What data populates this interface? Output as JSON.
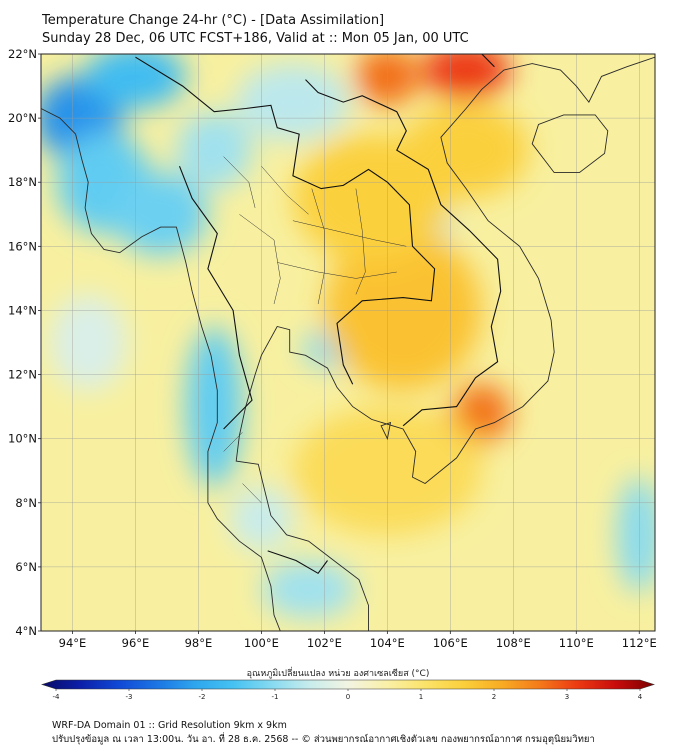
{
  "title": {
    "line1": "Temperature Change 24-hr (°C) - [Data Assimilation]",
    "line2": "Sunday 28 Dec, 06 UTC FCST+186, Valid at :: Mon 05 Jan, 00 UTC"
  },
  "map": {
    "lon_range": [
      93,
      112.5
    ],
    "lat_range": [
      4,
      22
    ],
    "lat_ticks": [
      {
        "value": 22,
        "label": "22°N"
      },
      {
        "value": 20,
        "label": "20°N"
      },
      {
        "value": 18,
        "label": "18°N"
      },
      {
        "value": 16,
        "label": "16°N"
      },
      {
        "value": 14,
        "label": "14°N"
      },
      {
        "value": 12,
        "label": "12°N"
      },
      {
        "value": 10,
        "label": "10°N"
      },
      {
        "value": 8,
        "label": "8°N"
      },
      {
        "value": 6,
        "label": "6°N"
      },
      {
        "value": 4,
        "label": "4°N"
      }
    ],
    "lon_ticks": [
      {
        "value": 94,
        "label": "94°E"
      },
      {
        "value": 96,
        "label": "96°E"
      },
      {
        "value": 98,
        "label": "98°E"
      },
      {
        "value": 100,
        "label": "100°E"
      },
      {
        "value": 102,
        "label": "102°E"
      },
      {
        "value": 104,
        "label": "104°E"
      },
      {
        "value": 106,
        "label": "106°E"
      },
      {
        "value": 108,
        "label": "108°E"
      },
      {
        "value": 110,
        "label": "110°E"
      },
      {
        "value": 112,
        "label": "112°E"
      }
    ],
    "grid_lines": true,
    "background_color": "#f8f0a0",
    "field_blobs": [
      {
        "lon": 94.2,
        "lat": 20.0,
        "rlon": 1.4,
        "rlat": 1.3,
        "value": -2.2
      },
      {
        "lon": 96.0,
        "lat": 21.3,
        "rlon": 1.6,
        "rlat": 1.0,
        "value": -1.6
      },
      {
        "lon": 95.0,
        "lat": 18.0,
        "rlon": 1.5,
        "rlat": 1.6,
        "value": -1.3
      },
      {
        "lon": 96.8,
        "lat": 17.0,
        "rlon": 1.5,
        "rlat": 1.3,
        "value": -1.2
      },
      {
        "lon": 98.5,
        "lat": 19.0,
        "rlon": 1.2,
        "rlat": 1.2,
        "value": -0.8
      },
      {
        "lon": 101.0,
        "lat": 20.5,
        "rlon": 1.8,
        "rlat": 1.2,
        "value": -0.6
      },
      {
        "lon": 98.5,
        "lat": 11.0,
        "rlon": 0.9,
        "rlat": 2.5,
        "value": -1.3
      },
      {
        "lon": 102.3,
        "lat": 12.8,
        "rlon": 1.0,
        "rlat": 0.6,
        "value": -1.0
      },
      {
        "lon": 105.3,
        "lat": 16.8,
        "rlon": 0.8,
        "rlat": 0.6,
        "value": -0.8
      },
      {
        "lon": 101.5,
        "lat": 5.3,
        "rlon": 1.5,
        "rlat": 0.9,
        "value": -0.8
      },
      {
        "lon": 100.0,
        "lat": 7.5,
        "rlon": 1.0,
        "rlat": 1.0,
        "value": -0.5
      },
      {
        "lon": 112.0,
        "lat": 7.0,
        "rlon": 0.7,
        "rlat": 1.8,
        "value": -1.0
      },
      {
        "lon": 94.5,
        "lat": 13.0,
        "rlon": 1.2,
        "rlat": 1.5,
        "value": -0.3
      },
      {
        "lon": 104.0,
        "lat": 21.3,
        "rlon": 1.0,
        "rlat": 0.9,
        "value": 2.6
      },
      {
        "lon": 106.5,
        "lat": 21.5,
        "rlon": 1.4,
        "rlat": 0.9,
        "value": 3.0
      },
      {
        "lon": 107.0,
        "lat": 10.8,
        "rlon": 0.9,
        "rlat": 0.9,
        "value": 2.6
      },
      {
        "lon": 105.8,
        "lat": 9.8,
        "rlon": 1.2,
        "rlat": 1.0,
        "value": 2.0
      },
      {
        "lon": 104.5,
        "lat": 14.0,
        "rlon": 2.5,
        "rlat": 2.5,
        "value": 1.7
      },
      {
        "lon": 103.5,
        "lat": 17.5,
        "rlon": 2.5,
        "rlat": 2.0,
        "value": 1.5
      },
      {
        "lon": 106.5,
        "lat": 19.0,
        "rlon": 2.0,
        "rlat": 1.5,
        "value": 1.5
      },
      {
        "lon": 104.0,
        "lat": 9.0,
        "rlon": 3.0,
        "rlat": 2.0,
        "value": 1.2
      }
    ],
    "coast_lines": [
      [
        [
          93.0,
          20.3
        ],
        [
          93.6,
          20.0
        ],
        [
          94.1,
          19.5
        ],
        [
          94.3,
          18.7
        ],
        [
          94.5,
          18.0
        ],
        [
          94.4,
          17.2
        ],
        [
          94.6,
          16.4
        ],
        [
          95.0,
          15.9
        ],
        [
          95.5,
          15.8
        ],
        [
          96.2,
          16.3
        ],
        [
          96.8,
          16.6
        ],
        [
          97.3,
          16.6
        ],
        [
          97.6,
          15.5
        ],
        [
          97.8,
          14.6
        ],
        [
          98.1,
          13.5
        ],
        [
          98.4,
          12.6
        ],
        [
          98.6,
          11.5
        ],
        [
          98.6,
          10.5
        ],
        [
          98.3,
          9.6
        ],
        [
          98.3,
          8.8
        ],
        [
          98.3,
          8.0
        ],
        [
          98.6,
          7.5
        ],
        [
          99.3,
          6.8
        ],
        [
          100.0,
          6.3
        ],
        [
          100.3,
          5.4
        ],
        [
          100.4,
          4.5
        ],
        [
          100.6,
          4.0
        ]
      ],
      [
        [
          103.4,
          4.0
        ],
        [
          103.4,
          4.8
        ],
        [
          103.1,
          5.6
        ],
        [
          102.3,
          6.2
        ],
        [
          101.5,
          6.8
        ],
        [
          100.8,
          7.0
        ],
        [
          100.3,
          7.6
        ],
        [
          100.1,
          8.4
        ],
        [
          99.9,
          9.2
        ],
        [
          99.2,
          9.3
        ],
        [
          99.3,
          10.1
        ],
        [
          99.5,
          11.0
        ],
        [
          99.8,
          12.0
        ],
        [
          100.0,
          12.6
        ],
        [
          100.5,
          13.5
        ],
        [
          100.9,
          13.4
        ],
        [
          100.9,
          12.7
        ],
        [
          101.4,
          12.6
        ],
        [
          102.1,
          12.2
        ],
        [
          102.4,
          11.6
        ],
        [
          102.9,
          11.0
        ],
        [
          103.5,
          10.6
        ],
        [
          104.5,
          10.3
        ],
        [
          104.9,
          9.6
        ],
        [
          104.8,
          8.8
        ],
        [
          105.2,
          8.6
        ],
        [
          106.2,
          9.4
        ],
        [
          106.8,
          10.3
        ],
        [
          107.4,
          10.5
        ],
        [
          108.3,
          11.0
        ],
        [
          109.1,
          11.8
        ],
        [
          109.3,
          12.7
        ],
        [
          109.2,
          13.7
        ],
        [
          108.8,
          15.0
        ],
        [
          108.2,
          16.0
        ],
        [
          107.2,
          16.8
        ],
        [
          106.5,
          17.8
        ],
        [
          105.9,
          18.6
        ],
        [
          105.7,
          19.4
        ],
        [
          106.5,
          20.3
        ],
        [
          107.0,
          20.9
        ],
        [
          107.7,
          21.5
        ],
        [
          108.6,
          21.7
        ],
        [
          109.5,
          21.5
        ],
        [
          110.0,
          21.0
        ],
        [
          110.4,
          20.5
        ],
        [
          110.8,
          21.3
        ],
        [
          111.6,
          21.6
        ],
        [
          112.5,
          21.9
        ]
      ]
    ],
    "islands": [
      [
        [
          108.6,
          19.2
        ],
        [
          109.3,
          18.3
        ],
        [
          110.1,
          18.3
        ],
        [
          110.9,
          18.9
        ],
        [
          111.0,
          19.6
        ],
        [
          110.6,
          20.1
        ],
        [
          109.6,
          20.1
        ],
        [
          108.8,
          19.8
        ],
        [
          108.6,
          19.2
        ]
      ],
      [
        [
          103.8,
          10.4
        ],
        [
          104.0,
          10.0
        ],
        [
          104.1,
          10.5
        ],
        [
          103.8,
          10.4
        ]
      ]
    ],
    "border_lines": [
      [
        [
          96.0,
          21.9
        ],
        [
          97.5,
          21.0
        ],
        [
          98.5,
          20.2
        ],
        [
          99.5,
          20.3
        ],
        [
          100.3,
          20.4
        ],
        [
          100.5,
          19.7
        ],
        [
          101.2,
          19.5
        ],
        [
          101.0,
          18.2
        ],
        [
          101.9,
          17.8
        ],
        [
          102.6,
          17.9
        ],
        [
          103.4,
          18.4
        ],
        [
          104.0,
          18.0
        ],
        [
          104.7,
          17.3
        ],
        [
          104.8,
          16.0
        ],
        [
          105.5,
          15.3
        ],
        [
          105.4,
          14.3
        ],
        [
          104.5,
          14.4
        ],
        [
          103.2,
          14.3
        ],
        [
          102.4,
          13.6
        ],
        [
          102.6,
          12.3
        ],
        [
          102.9,
          11.7
        ]
      ],
      [
        [
          97.4,
          18.5
        ],
        [
          97.8,
          17.5
        ],
        [
          98.6,
          16.4
        ],
        [
          98.3,
          15.3
        ],
        [
          99.1,
          14.0
        ],
        [
          99.3,
          12.6
        ],
        [
          99.7,
          11.2
        ],
        [
          98.8,
          10.3
        ]
      ],
      [
        [
          102.6,
          22.0
        ],
        [
          103.5,
          22.5
        ],
        [
          104.6,
          22.8
        ],
        [
          105.8,
          22.9
        ],
        [
          106.7,
          22.3
        ],
        [
          107.4,
          21.6
        ]
      ],
      [
        [
          101.4,
          21.2
        ],
        [
          101.8,
          20.8
        ],
        [
          102.6,
          20.5
        ],
        [
          103.2,
          20.7
        ],
        [
          104.3,
          20.2
        ],
        [
          104.6,
          19.6
        ],
        [
          104.3,
          19.0
        ],
        [
          105.3,
          18.4
        ],
        [
          105.7,
          17.3
        ],
        [
          106.6,
          16.5
        ],
        [
          107.5,
          15.6
        ],
        [
          107.6,
          14.6
        ],
        [
          107.3,
          13.5
        ],
        [
          107.5,
          12.4
        ],
        [
          106.8,
          11.9
        ],
        [
          106.2,
          11.0
        ],
        [
          105.1,
          10.9
        ],
        [
          104.5,
          10.4
        ]
      ],
      [
        [
          100.2,
          6.5
        ],
        [
          101.1,
          6.2
        ],
        [
          101.8,
          5.8
        ],
        [
          102.1,
          6.2
        ]
      ]
    ],
    "province_lines": [
      [
        [
          100.0,
          18.5
        ],
        [
          100.8,
          17.6
        ],
        [
          101.5,
          17.0
        ]
      ],
      [
        [
          101.0,
          16.8
        ],
        [
          102.3,
          16.5
        ],
        [
          103.6,
          16.2
        ],
        [
          104.6,
          16.0
        ]
      ],
      [
        [
          100.5,
          15.5
        ],
        [
          101.8,
          15.2
        ],
        [
          103.0,
          15.0
        ],
        [
          104.3,
          15.2
        ]
      ],
      [
        [
          101.6,
          17.8
        ],
        [
          102.0,
          16.5
        ],
        [
          102.0,
          15.2
        ],
        [
          101.8,
          14.2
        ]
      ],
      [
        [
          103.0,
          17.8
        ],
        [
          103.2,
          16.5
        ],
        [
          103.3,
          15.2
        ],
        [
          103.0,
          14.5
        ]
      ],
      [
        [
          99.3,
          17.0
        ],
        [
          100.4,
          16.2
        ],
        [
          100.6,
          15.0
        ],
        [
          100.4,
          14.2
        ]
      ],
      [
        [
          98.8,
          18.8
        ],
        [
          99.6,
          18.0
        ],
        [
          99.8,
          17.2
        ]
      ],
      [
        [
          99.4,
          8.6
        ],
        [
          100.0,
          8.0
        ]
      ],
      [
        [
          98.8,
          9.6
        ],
        [
          99.4,
          10.2
        ]
      ]
    ]
  },
  "colorbar": {
    "title": "อุณหภูมิเปลี่ยนแปลง หน่วย องศาเซลเซียส (°C)",
    "min": -4,
    "max": 4,
    "tick_labels": [
      "-4",
      "-3",
      "-2",
      "-1",
      "0",
      "1",
      "2",
      "3",
      "4"
    ],
    "stops": [
      {
        "value": -4,
        "color": "#0a0a66"
      },
      {
        "value": -3.5,
        "color": "#0b1fa8"
      },
      {
        "value": -3,
        "color": "#1048d6"
      },
      {
        "value": -2.4,
        "color": "#1f7ee6"
      },
      {
        "value": -2,
        "color": "#2ea6ee"
      },
      {
        "value": -1.5,
        "color": "#46c2f2"
      },
      {
        "value": -1,
        "color": "#86daf0"
      },
      {
        "value": -0.5,
        "color": "#c8ecec"
      },
      {
        "value": 0,
        "color": "#f2f4e2"
      },
      {
        "value": 0.5,
        "color": "#faf0a8"
      },
      {
        "value": 1,
        "color": "#fbe36a"
      },
      {
        "value": 1.5,
        "color": "#fbd03c"
      },
      {
        "value": 2,
        "color": "#f8ac24"
      },
      {
        "value": 2.5,
        "color": "#f47a1a"
      },
      {
        "value": 3,
        "color": "#ec3a12"
      },
      {
        "value": 3.5,
        "color": "#c80c0c"
      },
      {
        "value": 4,
        "color": "#7a0000"
      }
    ]
  },
  "footer": {
    "line1": "WRF-DA Domain 01 :: Grid Resolution 9km x 9km",
    "line2": "ปรับปรุงข้อมูล ณ เวลา 13:00น. วัน อา. ที่ 28 ธ.ค. 2568 -- © ส่วนพยากรณ์อากาศเชิงตัวเลข กองพยากรณ์อากาศ กรมอุตุนิยมวิทยา"
  }
}
